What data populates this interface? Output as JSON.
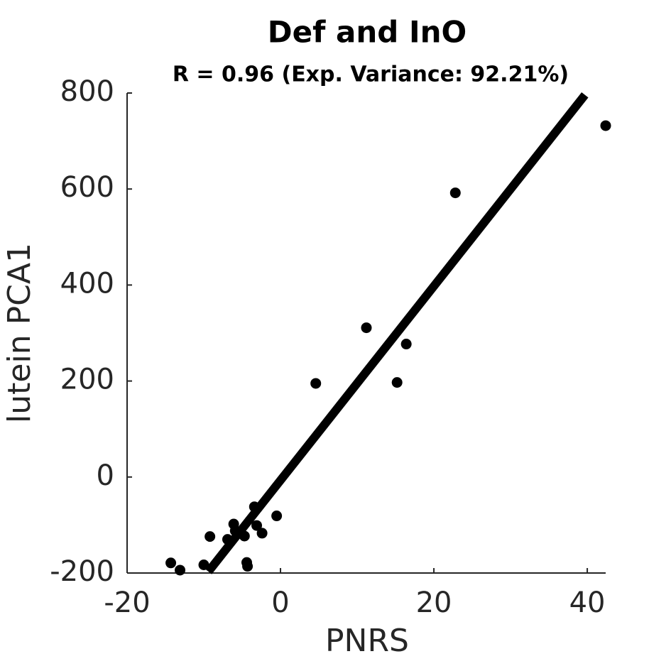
{
  "chart_data": {
    "type": "scatter",
    "title": "Def and InO",
    "subtitle": "R = 0.96 (Exp. Variance: 92.21%)",
    "x_label": "PNRS",
    "y_label": "lutein PCA1",
    "series": [
      {
        "color": "#000000",
        "x": [
          -14.3,
          -13.1,
          -10.0,
          -9.2,
          -6.9,
          -6.1,
          -5.9,
          -4.7,
          -4.4,
          -4.3,
          -3.4,
          -3.1,
          -2.4,
          -0.5,
          4.6,
          11.2,
          15.2,
          16.4,
          22.8,
          42.4
        ],
        "values": [
          -179,
          -194,
          -183,
          -124,
          -130,
          -98,
          -112,
          -123,
          -178,
          -186,
          -62,
          -101,
          -117,
          -81,
          195,
          311,
          197,
          277,
          592,
          732
        ]
      }
    ],
    "fit_line": {
      "color": "#000000",
      "x": [
        -9.4,
        39.7
      ],
      "values": [
        -197,
        796
      ]
    },
    "xlim": [
      -20,
      42.4
    ],
    "ylim": [
      -200,
      800
    ],
    "xticks": [
      -20,
      0,
      20,
      40
    ],
    "yticks": [
      -200,
      0,
      200,
      400,
      600,
      800
    ],
    "grid": false
  }
}
